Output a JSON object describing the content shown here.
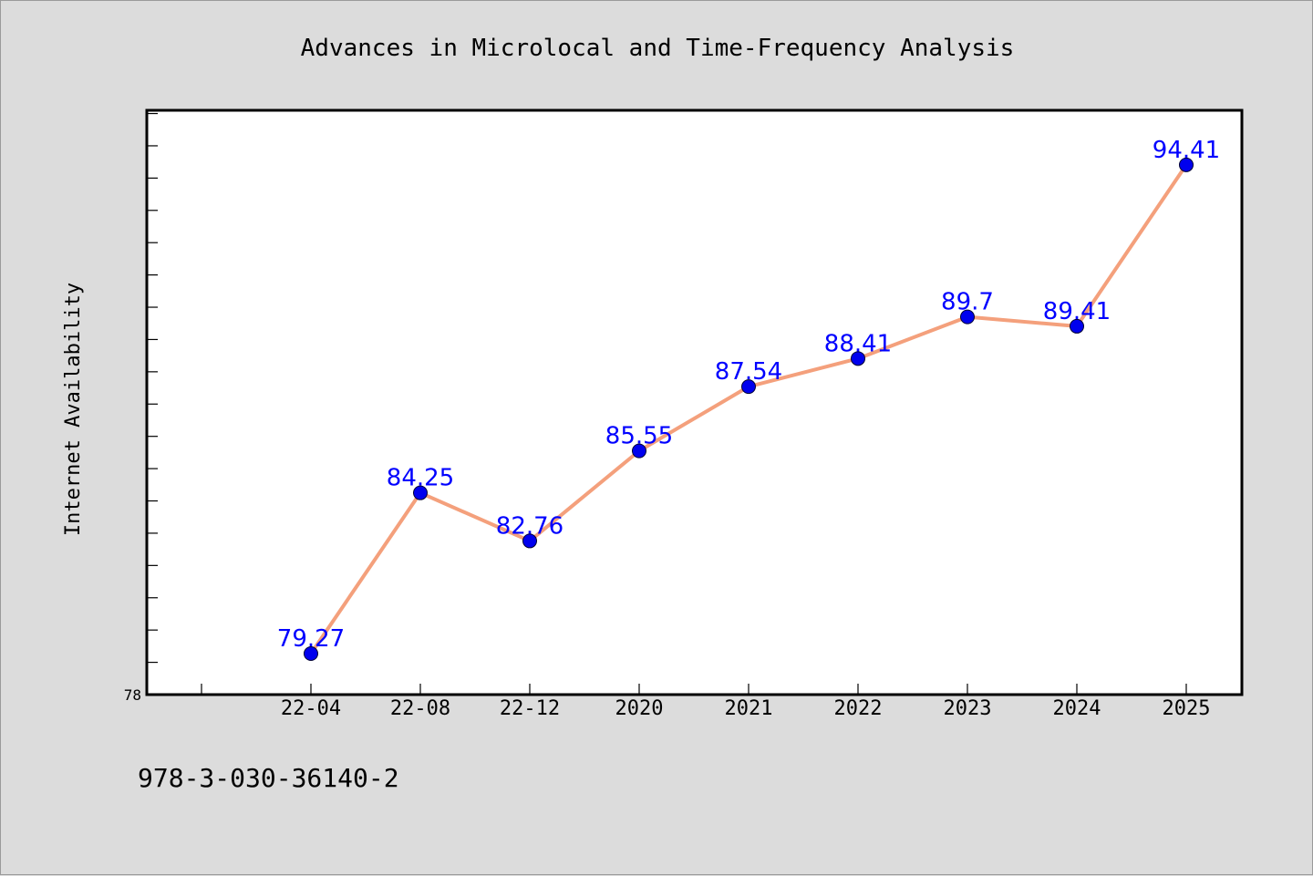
{
  "chart_data": {
    "type": "line",
    "title": "Advances in Microlocal and Time-Frequency Analysis",
    "ylabel": "Internet Availability",
    "xlabel": "",
    "categories": [
      "22-04",
      "22-08",
      "22-12",
      "2020",
      "2021",
      "2022",
      "2023",
      "2024",
      "2025"
    ],
    "series": [
      {
        "values": [
          79.27,
          84.25,
          82.76,
          85.55,
          87.54,
          88.41,
          89.7,
          89.41,
          94.41
        ]
      }
    ],
    "data_labels": [
      "79.27",
      "84.25",
      "82.76",
      "85.55",
      "87.54",
      "88.41",
      "89.7",
      "89.41",
      "94.41"
    ],
    "ylim": [
      78,
      96.1
    ],
    "y_tick_labels": [
      "78"
    ],
    "y_minor_step": 1,
    "grid": false,
    "legend": "none",
    "colors": {
      "line": "#f4a07c",
      "marker": "#0000ee",
      "label": "#0000ff",
      "background": "#dcdcdc",
      "plot_background": "#ffffff"
    }
  },
  "footer": {
    "isbn": "978-3-030-36140-2"
  }
}
